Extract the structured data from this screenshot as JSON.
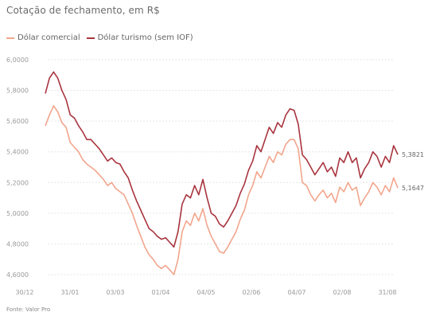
{
  "subtitle": "Cotação de fechamento, em R$",
  "source": "Fonte: Valor Pro",
  "colors": {
    "comercial": "#f2a58c",
    "turismo": "#a8343e",
    "grid": "#e6e6e6",
    "tick": "#9a9a9a"
  },
  "chart_data": {
    "type": "line",
    "title": "",
    "subtitle": "Cotação de fechamento, em R$",
    "xlabel": "",
    "ylabel": "",
    "ylim": [
      4.6,
      6.0
    ],
    "yticks": [
      "6,0000",
      "5,8000",
      "5,6000",
      "5,4000",
      "5,2000",
      "5,0000",
      "4,8000",
      "4,6000"
    ],
    "x_tick_labels": [
      "30/12",
      "31/01",
      "03/03",
      "01/04",
      "04/05",
      "02/06",
      "04/07",
      "02/08",
      "31/08"
    ],
    "grid": true,
    "legend_position": "top-left",
    "series": [
      {
        "name": "Dólar comercial",
        "color": "#f2a58c",
        "end_label": "5,1647",
        "values": [
          5.57,
          5.64,
          5.7,
          5.66,
          5.59,
          5.56,
          5.46,
          5.43,
          5.4,
          5.35,
          5.32,
          5.3,
          5.28,
          5.25,
          5.22,
          5.18,
          5.2,
          5.16,
          5.14,
          5.12,
          5.06,
          5.0,
          4.92,
          4.85,
          4.78,
          4.73,
          4.7,
          4.66,
          4.64,
          4.66,
          4.63,
          4.6,
          4.7,
          4.88,
          4.95,
          4.92,
          5.0,
          4.95,
          5.03,
          4.92,
          4.85,
          4.8,
          4.75,
          4.74,
          4.78,
          4.83,
          4.88,
          4.96,
          5.02,
          5.12,
          5.18,
          5.27,
          5.23,
          5.3,
          5.37,
          5.33,
          5.4,
          5.38,
          5.45,
          5.48,
          5.48,
          5.42,
          5.2,
          5.18,
          5.12,
          5.08,
          5.12,
          5.15,
          5.1,
          5.13,
          5.07,
          5.17,
          5.14,
          5.2,
          5.15,
          5.17,
          5.05,
          5.1,
          5.14,
          5.2,
          5.17,
          5.12,
          5.18,
          5.14,
          5.23,
          5.1647
        ]
      },
      {
        "name": "Dólar turismo (sem IOF)",
        "color": "#a8343e",
        "end_label": "5,3821",
        "values": [
          5.78,
          5.88,
          5.92,
          5.88,
          5.8,
          5.74,
          5.64,
          5.62,
          5.57,
          5.53,
          5.48,
          5.48,
          5.45,
          5.42,
          5.38,
          5.34,
          5.36,
          5.33,
          5.32,
          5.27,
          5.23,
          5.15,
          5.08,
          5.02,
          4.96,
          4.9,
          4.88,
          4.85,
          4.83,
          4.84,
          4.81,
          4.78,
          4.88,
          5.06,
          5.12,
          5.1,
          5.18,
          5.12,
          5.22,
          5.1,
          5.0,
          4.98,
          4.93,
          4.91,
          4.95,
          5.0,
          5.05,
          5.13,
          5.19,
          5.28,
          5.34,
          5.44,
          5.4,
          5.48,
          5.56,
          5.52,
          5.59,
          5.56,
          5.64,
          5.68,
          5.67,
          5.58,
          5.38,
          5.35,
          5.3,
          5.25,
          5.29,
          5.33,
          5.27,
          5.3,
          5.24,
          5.36,
          5.33,
          5.4,
          5.33,
          5.36,
          5.23,
          5.29,
          5.33,
          5.4,
          5.37,
          5.3,
          5.37,
          5.33,
          5.44,
          5.3821
        ]
      }
    ]
  }
}
